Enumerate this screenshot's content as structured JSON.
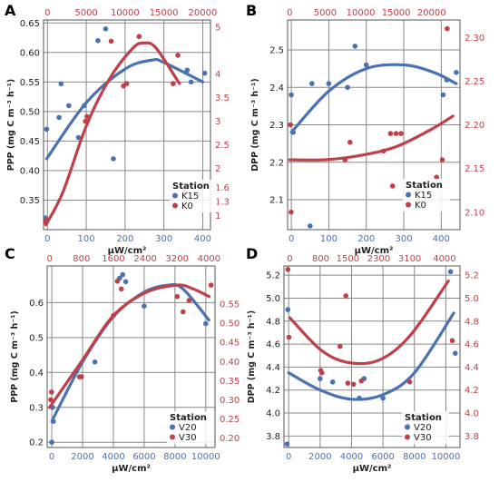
{
  "colors": {
    "blue": "#4a72b0",
    "red": "#c0404a",
    "grid": "#888888",
    "frame": "#555555",
    "text": "#222222"
  },
  "chart_data": [
    {
      "panel_label": "A",
      "type": "scatter",
      "ylabel": "PPP (mg C m⁻³ h⁻¹)",
      "xlabel": "μW/cm²",
      "legend": {
        "title": "Station",
        "position": "bottom-right",
        "entries": [
          "K15",
          "K0"
        ]
      },
      "x_bottom": {
        "lim": [
          -10,
          420
        ],
        "ticks": [
          0,
          100,
          200,
          300,
          400
        ]
      },
      "x_top": {
        "lim": [
          -500,
          21000
        ],
        "ticks": [
          0,
          5000,
          10000,
          15000,
          20000
        ]
      },
      "y_left": {
        "lim": [
          0.3,
          0.655
        ],
        "ticks": [
          0.35,
          0.4,
          0.45,
          0.5,
          0.55,
          0.6,
          0.65
        ]
      },
      "y_right": {
        "lim": [
          0.7,
          5.15
        ],
        "ticks": [
          1,
          1.3,
          1.6,
          2,
          2.5,
          3,
          3.5,
          4,
          5
        ],
        "tick_labels": [
          "1",
          "1.3",
          "1.6",
          "2",
          "2.5",
          "3",
          "3.5",
          "4",
          "5"
        ]
      },
      "series": [
        {
          "name": "K15",
          "color": "blue",
          "x_axis": "bottom",
          "y_axis": "left",
          "points": [
            [
              -5,
              0.32
            ],
            [
              -2,
              0.47
            ],
            [
              30,
              0.49
            ],
            [
              35,
              0.547
            ],
            [
              55,
              0.51
            ],
            [
              80,
              0.456
            ],
            [
              95,
              0.51
            ],
            [
              130,
              0.62
            ],
            [
              150,
              0.64
            ],
            [
              170,
              0.42
            ],
            [
              360,
              0.57
            ],
            [
              370,
              0.55
            ],
            [
              405,
              0.565
            ]
          ],
          "fit": [
            [
              -2,
              0.42
            ],
            [
              100,
              0.515
            ],
            [
              200,
              0.572
            ],
            [
              270,
              0.587
            ],
            [
              300,
              0.583
            ],
            [
              400,
              0.55
            ]
          ]
        },
        {
          "name": "K0",
          "color": "red",
          "x_axis": "top",
          "y_axis": "right",
          "points": [
            [
              -200,
              0.85
            ],
            [
              -150,
              0.9
            ],
            [
              4900,
              3.0
            ],
            [
              5100,
              3.1
            ],
            [
              8200,
              4.7
            ],
            [
              9800,
              3.75
            ],
            [
              10200,
              3.8
            ],
            [
              11800,
              4.8
            ],
            [
              16200,
              3.8
            ],
            [
              16800,
              4.4
            ],
            [
              17800,
              1.5
            ]
          ],
          "fit": [
            [
              -200,
              0.8
            ],
            [
              2000,
              1.5
            ],
            [
              5000,
              2.9
            ],
            [
              8000,
              3.9
            ],
            [
              11000,
              4.55
            ],
            [
              12500,
              4.66
            ],
            [
              14000,
              4.55
            ],
            [
              17000,
              3.8
            ]
          ]
        }
      ]
    },
    {
      "panel_label": "B",
      "type": "scatter",
      "ylabel": "DPP (mg C m⁻³ h⁻¹)",
      "xlabel": "μW/cm²",
      "legend": {
        "title": "Station",
        "position": "bottom-right",
        "entries": [
          "K15",
          "K0"
        ]
      },
      "x_bottom": {
        "lim": [
          -10,
          450
        ],
        "ticks": [
          0,
          100,
          200,
          300,
          400
        ]
      },
      "x_top": {
        "lim": [
          -300,
          24000
        ],
        "ticks": [
          0,
          5000,
          10000,
          15000,
          20000
        ]
      },
      "y_left": {
        "lim": [
          2.02,
          2.58
        ],
        "ticks": [
          2.1,
          2.2,
          2.3,
          2.4,
          2.5
        ]
      },
      "y_right": {
        "lim": [
          2.08,
          2.32
        ],
        "ticks": [
          2.1,
          2.15,
          2.2,
          2.25,
          2.3
        ]
      },
      "series": [
        {
          "name": "K15",
          "color": "blue",
          "x_axis": "bottom",
          "y_axis": "left",
          "points": [
            [
              0,
              2.38
            ],
            [
              5,
              2.28
            ],
            [
              50,
              2.03
            ],
            [
              55,
              2.41
            ],
            [
              100,
              2.41
            ],
            [
              150,
              2.4
            ],
            [
              170,
              2.51
            ],
            [
              200,
              2.46
            ],
            [
              405,
              2.38
            ],
            [
              415,
              2.42
            ],
            [
              440,
              2.44
            ]
          ],
          "fit": [
            [
              0,
              2.28
            ],
            [
              100,
              2.39
            ],
            [
              200,
              2.45
            ],
            [
              300,
              2.46
            ],
            [
              380,
              2.44
            ],
            [
              440,
              2.41
            ]
          ]
        },
        {
          "name": "K0",
          "color": "red",
          "x_axis": "top",
          "y_axis": "right",
          "points": [
            [
              100,
              2.2
            ],
            [
              200,
              2.1
            ],
            [
              7800,
              2.16
            ],
            [
              8500,
              2.18
            ],
            [
              13200,
              2.17
            ],
            [
              14200,
              2.19
            ],
            [
              14500,
              2.13
            ],
            [
              15000,
              2.19
            ],
            [
              15700,
              2.19
            ],
            [
              20700,
              2.14
            ],
            [
              21500,
              2.16
            ],
            [
              22200,
              2.31
            ]
          ],
          "fit": [
            [
              0,
              2.16
            ],
            [
              5000,
              2.16
            ],
            [
              10000,
              2.165
            ],
            [
              15000,
              2.175
            ],
            [
              20000,
              2.195
            ],
            [
              23000,
              2.21
            ]
          ]
        }
      ]
    },
    {
      "panel_label": "C",
      "type": "scatter",
      "ylabel": "PPP (mg C m⁻³ h⁻¹)",
      "xlabel": "μW/cm²",
      "legend": {
        "title": "Station",
        "position": "bottom-right",
        "entries": [
          "V20",
          "V30"
        ]
      },
      "x_bottom": {
        "lim": [
          -300,
          10600
        ],
        "ticks": [
          0,
          2000,
          4000,
          6000,
          8000,
          10000
        ]
      },
      "x_top": {
        "lim": [
          -60,
          4150
        ],
        "ticks": [
          0,
          800,
          1600,
          2400,
          3200,
          4000
        ]
      },
      "y_left": {
        "lim": [
          0.185,
          0.705
        ],
        "ticks": [
          0.2,
          0.3,
          0.4,
          0.5,
          0.6
        ]
      },
      "y_right": {
        "lim": [
          0.175,
          0.65
        ],
        "ticks": [
          0.2,
          0.25,
          0.3,
          0.35,
          0.4,
          0.45,
          0.5,
          0.55
        ]
      },
      "series": [
        {
          "name": "V20",
          "color": "blue",
          "x_axis": "bottom",
          "y_axis": "left",
          "points": [
            [
              0,
              0.2
            ],
            [
              50,
              0.3
            ],
            [
              100,
              0.26
            ],
            [
              2800,
              0.43
            ],
            [
              4400,
              0.67
            ],
            [
              4600,
              0.68
            ],
            [
              4800,
              0.66
            ],
            [
              6000,
              0.59
            ],
            [
              10000,
              0.54
            ]
          ],
          "fit": [
            [
              0,
              0.26
            ],
            [
              2000,
              0.43
            ],
            [
              4000,
              0.56
            ],
            [
              6000,
              0.63
            ],
            [
              7500,
              0.65
            ],
            [
              8500,
              0.64
            ],
            [
              10200,
              0.55
            ]
          ]
        },
        {
          "name": "V30",
          "color": "red",
          "x_axis": "top",
          "y_axis": "right",
          "points": [
            [
              30,
              0.3
            ],
            [
              50,
              0.32
            ],
            [
              750,
              0.36
            ],
            [
              800,
              0.36
            ],
            [
              1600,
              0.52
            ],
            [
              1700,
              0.61
            ],
            [
              1800,
              0.59
            ],
            [
              3200,
              0.57
            ],
            [
              3350,
              0.53
            ],
            [
              3500,
              0.56
            ],
            [
              4050,
              0.6
            ]
          ],
          "fit": [
            [
              0,
              0.28
            ],
            [
              800,
              0.4
            ],
            [
              1600,
              0.52
            ],
            [
              2400,
              0.58
            ],
            [
              3200,
              0.6
            ],
            [
              3600,
              0.59
            ],
            [
              4000,
              0.57
            ]
          ]
        }
      ]
    },
    {
      "panel_label": "D",
      "type": "scatter",
      "ylabel": "DPP (mg C m⁻³ h⁻¹)",
      "xlabel": "μW/cm²",
      "legend": {
        "title": "Station",
        "position": "bottom-right",
        "entries": [
          "V20",
          "V30"
        ]
      },
      "x_bottom": {
        "lim": [
          -300,
          10900
        ],
        "ticks": [
          0,
          2000,
          4000,
          6000,
          8000,
          10000
        ]
      },
      "x_top": {
        "lim": [
          -150,
          4400
        ],
        "ticks": [
          0,
          800,
          1500,
          2300,
          3100,
          4000
        ]
      },
      "y_left": {
        "lim": [
          3.7,
          5.28
        ],
        "ticks": [
          3.8,
          4.0,
          4.2,
          4.4,
          4.6,
          4.8,
          5.0,
          5.2
        ]
      },
      "y_right": {
        "lim": [
          3.7,
          5.28
        ],
        "ticks": [
          3.8,
          4.0,
          4.2,
          4.4,
          4.6,
          4.8,
          5.0,
          5.2
        ]
      },
      "series": [
        {
          "name": "V20",
          "color": "blue",
          "x_axis": "bottom",
          "y_axis": "left",
          "points": [
            [
              -100,
              3.73
            ],
            [
              -50,
              4.9
            ],
            [
              2000,
              4.3
            ],
            [
              2800,
              4.27
            ],
            [
              4500,
              4.13
            ],
            [
              4800,
              4.3
            ],
            [
              6000,
              4.13
            ],
            [
              7500,
              3.88
            ],
            [
              7600,
              3.9
            ],
            [
              10300,
              5.23
            ],
            [
              10600,
              4.52
            ]
          ],
          "fit": [
            [
              0,
              4.35
            ],
            [
              2000,
              4.2
            ],
            [
              4000,
              4.12
            ],
            [
              6000,
              4.16
            ],
            [
              8000,
              4.35
            ],
            [
              10500,
              4.87
            ]
          ]
        },
        {
          "name": "V30",
          "color": "red",
          "x_axis": "top",
          "y_axis": "right",
          "points": [
            [
              -50,
              5.25
            ],
            [
              -20,
              4.66
            ],
            [
              800,
              4.37
            ],
            [
              830,
              4.35
            ],
            [
              1300,
              4.58
            ],
            [
              1450,
              5.02
            ],
            [
              1500,
              4.26
            ],
            [
              1650,
              4.25
            ],
            [
              1850,
              4.28
            ],
            [
              3100,
              4.27
            ],
            [
              4200,
              4.63
            ]
          ],
          "fit": [
            [
              0,
              4.83
            ],
            [
              800,
              4.55
            ],
            [
              1500,
              4.44
            ],
            [
              2300,
              4.46
            ],
            [
              3100,
              4.67
            ],
            [
              4100,
              5.15
            ]
          ]
        }
      ]
    }
  ]
}
